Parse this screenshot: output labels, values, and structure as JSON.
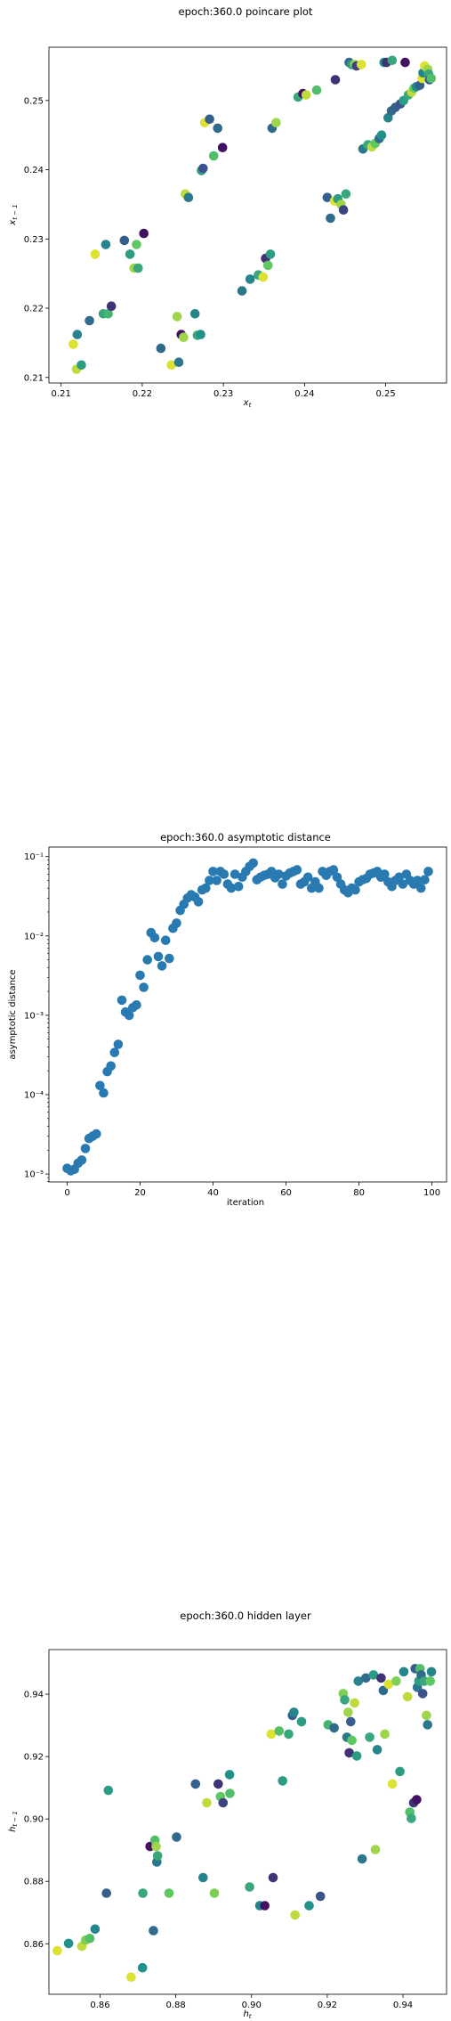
{
  "chart_data": [
    {
      "type": "scatter",
      "title": "epoch:360.0 poincare plot",
      "xlabel": "x_t",
      "ylabel": "x_{t-1}",
      "xlim": [
        0.2085,
        0.2575
      ],
      "ylim": [
        0.2092,
        0.2577
      ],
      "xticks": [
        "0.21",
        "0.22",
        "0.23",
        "0.24",
        "0.25"
      ],
      "yticks": [
        "0.21",
        "0.22",
        "0.23",
        "0.24",
        "0.25"
      ],
      "xtick_values": [
        0.21,
        0.22,
        0.23,
        0.24,
        0.25
      ],
      "ytick_values": [
        0.21,
        0.22,
        0.23,
        0.24,
        0.25
      ],
      "grid": false,
      "colormap": "viridis",
      "points": [
        [
          0.2115,
          0.2148,
          0.95
        ],
        [
          0.212,
          0.2162,
          0.45
        ],
        [
          0.2119,
          0.2112,
          0.9
        ],
        [
          0.2125,
          0.2118,
          0.55
        ],
        [
          0.2135,
          0.2182,
          0.35
        ],
        [
          0.2142,
          0.2278,
          0.95
        ],
        [
          0.2152,
          0.2192,
          0.6
        ],
        [
          0.2155,
          0.2292,
          0.45
        ],
        [
          0.2158,
          0.2192,
          0.65
        ],
        [
          0.2162,
          0.2203,
          0.15
        ],
        [
          0.2178,
          0.2298,
          0.3
        ],
        [
          0.2185,
          0.2278,
          0.55
        ],
        [
          0.219,
          0.2258,
          0.85
        ],
        [
          0.2193,
          0.2292,
          0.75
        ],
        [
          0.2195,
          0.2258,
          0.6
        ],
        [
          0.2202,
          0.2308,
          0.05
        ],
        [
          0.2223,
          0.2142,
          0.35
        ],
        [
          0.2236,
          0.2118,
          0.95
        ],
        [
          0.2243,
          0.2188,
          0.85
        ],
        [
          0.2245,
          0.2122,
          0.4
        ],
        [
          0.2248,
          0.2162,
          0.05
        ],
        [
          0.2251,
          0.2158,
          0.85
        ],
        [
          0.2253,
          0.2365,
          0.9
        ],
        [
          0.2257,
          0.236,
          0.4
        ],
        [
          0.2265,
          0.2192,
          0.45
        ],
        [
          0.2268,
          0.2161,
          0.6
        ],
        [
          0.2273,
          0.2399,
          0.55
        ],
        [
          0.2275,
          0.2402,
          0.25
        ],
        [
          0.2272,
          0.2162,
          0.5
        ],
        [
          0.2277,
          0.2468,
          0.95
        ],
        [
          0.2283,
          0.2473,
          0.3
        ],
        [
          0.2288,
          0.242,
          0.7
        ],
        [
          0.2293,
          0.246,
          0.35
        ],
        [
          0.2299,
          0.2432,
          0.05
        ],
        [
          0.2323,
          0.2225,
          0.4
        ],
        [
          0.2333,
          0.2242,
          0.45
        ],
        [
          0.2343,
          0.2248,
          0.6
        ],
        [
          0.2349,
          0.2245,
          0.95
        ],
        [
          0.2352,
          0.2272,
          0.15
        ],
        [
          0.2355,
          0.2262,
          0.75
        ],
        [
          0.2358,
          0.2278,
          0.55
        ],
        [
          0.236,
          0.246,
          0.35
        ],
        [
          0.2365,
          0.2468,
          0.85
        ],
        [
          0.2392,
          0.2505,
          0.6
        ],
        [
          0.2398,
          0.251,
          0.05
        ],
        [
          0.2402,
          0.2508,
          0.9
        ],
        [
          0.2415,
          0.2515,
          0.7
        ],
        [
          0.2428,
          0.236,
          0.3
        ],
        [
          0.2432,
          0.233,
          0.35
        ],
        [
          0.2438,
          0.253,
          0.15
        ],
        [
          0.2437,
          0.2355,
          0.95
        ],
        [
          0.2441,
          0.2358,
          0.55
        ],
        [
          0.2445,
          0.235,
          0.85
        ],
        [
          0.2448,
          0.2342,
          0.2
        ],
        [
          0.2451,
          0.2365,
          0.6
        ],
        [
          0.2455,
          0.2555,
          0.35
        ],
        [
          0.2458,
          0.2552,
          0.55
        ],
        [
          0.2462,
          0.2552,
          0.85
        ],
        [
          0.2464,
          0.255,
          0.2
        ],
        [
          0.247,
          0.2552,
          0.95
        ],
        [
          0.2472,
          0.243,
          0.4
        ],
        [
          0.2478,
          0.2436,
          0.6
        ],
        [
          0.2483,
          0.2433,
          0.9
        ],
        [
          0.2487,
          0.2438,
          0.75
        ],
        [
          0.2492,
          0.2445,
          0.35
        ],
        [
          0.2495,
          0.245,
          0.5
        ],
        [
          0.2498,
          0.2555,
          0.5
        ],
        [
          0.2501,
          0.2555,
          0.15
        ],
        [
          0.2503,
          0.2475,
          0.45
        ],
        [
          0.2507,
          0.2485,
          0.35
        ],
        [
          0.2508,
          0.2558,
          0.6
        ],
        [
          0.2512,
          0.249,
          0.3
        ],
        [
          0.2518,
          0.2495,
          0.25
        ],
        [
          0.2522,
          0.25,
          0.55
        ],
        [
          0.2524,
          0.2555,
          0.05
        ],
        [
          0.2528,
          0.2508,
          0.6
        ],
        [
          0.2532,
          0.2512,
          0.9
        ],
        [
          0.2535,
          0.2518,
          0.75
        ],
        [
          0.2538,
          0.252,
          0.45
        ],
        [
          0.2542,
          0.2522,
          0.3
        ],
        [
          0.2545,
          0.2532,
          0.95
        ],
        [
          0.2546,
          0.254,
          0.45
        ],
        [
          0.2548,
          0.255,
          0.95
        ],
        [
          0.2552,
          0.2545,
          0.85
        ],
        [
          0.2553,
          0.2538,
          0.6
        ],
        [
          0.2554,
          0.253,
          0.25
        ],
        [
          0.2556,
          0.2532,
          0.7
        ]
      ]
    },
    {
      "type": "scatter",
      "title": "epoch:360.0 asymptotic distance",
      "xlabel": "iteration",
      "ylabel": "asymptotic distance",
      "yscale": "log",
      "xlim": [
        -5,
        104
      ],
      "ylim_log10": [
        -5.1,
        -0.88
      ],
      "xticks": [
        "0",
        "20",
        "40",
        "60",
        "80",
        "100"
      ],
      "xtick_values": [
        0,
        20,
        40,
        60,
        80,
        100
      ],
      "yticks": [
        "10⁻⁵",
        "10⁻⁴",
        "10⁻³",
        "10⁻²",
        "10⁻¹"
      ],
      "ytick_exponents": [
        -5,
        -4,
        -3,
        -2,
        -1
      ],
      "grid": false,
      "color": "#2a7ab2",
      "x": [
        0,
        1,
        2,
        3,
        4,
        5,
        6,
        7,
        8,
        9,
        10,
        11,
        12,
        13,
        14,
        15,
        16,
        17,
        18,
        19,
        20,
        21,
        22,
        23,
        24,
        25,
        26,
        27,
        28,
        29,
        30,
        31,
        32,
        33,
        34,
        35,
        36,
        37,
        38,
        39,
        40,
        41,
        42,
        43,
        44,
        45,
        46,
        47,
        48,
        49,
        50,
        51,
        52,
        53,
        54,
        55,
        56,
        57,
        58,
        59,
        60,
        61,
        62,
        63,
        64,
        65,
        66,
        67,
        68,
        69,
        70,
        71,
        72,
        73,
        74,
        75,
        76,
        77,
        78,
        79,
        80,
        81,
        82,
        83,
        84,
        85,
        86,
        87,
        88,
        89,
        90,
        91,
        92,
        93,
        94,
        95,
        96,
        97,
        98,
        99
      ],
      "y": [
        1.18e-05,
        1.1e-05,
        1.15e-05,
        1.37e-05,
        1.5e-05,
        2.1e-05,
        2.8e-05,
        3e-05,
        3.2e-05,
        0.00013,
        0.000105,
        0.000195,
        0.00023,
        0.00034,
        0.00043,
        0.00155,
        0.0011,
        0.001,
        0.00125,
        0.00135,
        0.0032,
        0.00225,
        0.005,
        0.011,
        0.0095,
        0.0055,
        0.0042,
        0.0088,
        0.0052,
        0.0125,
        0.0145,
        0.021,
        0.025,
        0.03,
        0.033,
        0.031,
        0.027,
        0.038,
        0.04,
        0.05,
        0.065,
        0.05,
        0.065,
        0.06,
        0.045,
        0.04,
        0.06,
        0.042,
        0.055,
        0.065,
        0.075,
        0.083,
        0.051,
        0.055,
        0.058,
        0.06,
        0.065,
        0.054,
        0.06,
        0.045,
        0.057,
        0.062,
        0.065,
        0.068,
        0.045,
        0.048,
        0.055,
        0.04,
        0.048,
        0.04,
        0.065,
        0.058,
        0.065,
        0.068,
        0.055,
        0.045,
        0.038,
        0.035,
        0.04,
        0.038,
        0.048,
        0.051,
        0.053,
        0.06,
        0.062,
        0.065,
        0.055,
        0.06,
        0.048,
        0.042,
        0.05,
        0.055,
        0.045,
        0.06,
        0.05,
        0.045,
        0.05,
        0.04,
        0.051,
        0.065
      ]
    },
    {
      "type": "scatter",
      "title": "epoch:360.0 hidden layer",
      "xlabel": "h_t",
      "ylabel": "h_{t-1}",
      "xlim": [
        0.8465,
        0.9515
      ],
      "ylim": [
        0.8438,
        0.9543
      ],
      "xticks": [
        "0.86",
        "0.88",
        "0.90",
        "0.92",
        "0.94"
      ],
      "xtick_values": [
        0.86,
        0.88,
        0.9,
        0.92,
        0.94
      ],
      "yticks": [
        "0.86",
        "0.88",
        "0.90",
        "0.92",
        "0.94"
      ],
      "ytick_values": [
        0.86,
        0.88,
        0.9,
        0.92,
        0.94
      ],
      "grid": false,
      "colormap": "viridis",
      "points": [
        [
          0.8487,
          0.8578,
          0.95
        ],
        [
          0.8517,
          0.8601,
          0.5
        ],
        [
          0.8552,
          0.8592,
          0.9
        ],
        [
          0.8562,
          0.8612,
          0.8
        ],
        [
          0.8573,
          0.8617,
          0.7
        ],
        [
          0.8587,
          0.8647,
          0.45
        ],
        [
          0.8617,
          0.8762,
          0.3
        ],
        [
          0.8622,
          0.9092,
          0.55
        ],
        [
          0.8682,
          0.8493,
          0.95
        ],
        [
          0.8712,
          0.8523,
          0.5
        ],
        [
          0.8713,
          0.8762,
          0.6
        ],
        [
          0.8732,
          0.8912,
          0.05
        ],
        [
          0.8741,
          0.8642,
          0.35
        ],
        [
          0.8745,
          0.8932,
          0.7
        ],
        [
          0.8748,
          0.8912,
          0.85
        ],
        [
          0.875,
          0.8862,
          0.4
        ],
        [
          0.8752,
          0.8882,
          0.6
        ],
        [
          0.8782,
          0.8762,
          0.75
        ],
        [
          0.8802,
          0.8942,
          0.35
        ],
        [
          0.8852,
          0.9112,
          0.3
        ],
        [
          0.8872,
          0.8812,
          0.45
        ],
        [
          0.8882,
          0.9052,
          0.9
        ],
        [
          0.8902,
          0.8762,
          0.8
        ],
        [
          0.8912,
          0.9112,
          0.15
        ],
        [
          0.8918,
          0.9072,
          0.75
        ],
        [
          0.8925,
          0.9052,
          0.2
        ],
        [
          0.8942,
          0.9142,
          0.5
        ],
        [
          0.8943,
          0.9082,
          0.7
        ],
        [
          0.8995,
          0.8782,
          0.6
        ],
        [
          0.9022,
          0.8722,
          0.45
        ],
        [
          0.9035,
          0.8722,
          0.05
        ],
        [
          0.9052,
          0.9272,
          0.95
        ],
        [
          0.9057,
          0.8812,
          0.15
        ],
        [
          0.9073,
          0.9282,
          0.7
        ],
        [
          0.9082,
          0.9122,
          0.55
        ],
        [
          0.9098,
          0.9272,
          0.6
        ],
        [
          0.9108,
          0.9332,
          0.3
        ],
        [
          0.9112,
          0.9342,
          0.45
        ],
        [
          0.9115,
          0.8692,
          0.9
        ],
        [
          0.9132,
          0.9312,
          0.55
        ],
        [
          0.9152,
          0.8722,
          0.5
        ],
        [
          0.9182,
          0.8752,
          0.25
        ],
        [
          0.9202,
          0.9302,
          0.65
        ],
        [
          0.9218,
          0.9292,
          0.35
        ],
        [
          0.9242,
          0.9402,
          0.8
        ],
        [
          0.9246,
          0.9382,
          0.6
        ],
        [
          0.9252,
          0.9262,
          0.4
        ],
        [
          0.9255,
          0.9342,
          0.85
        ],
        [
          0.9258,
          0.9212,
          0.15
        ],
        [
          0.9262,
          0.9312,
          0.3
        ],
        [
          0.9265,
          0.9252,
          0.75
        ],
        [
          0.9272,
          0.9372,
          0.9
        ],
        [
          0.9278,
          0.9202,
          0.55
        ],
        [
          0.9282,
          0.9442,
          0.45
        ],
        [
          0.9292,
          0.8872,
          0.4
        ],
        [
          0.9302,
          0.9452,
          0.35
        ],
        [
          0.9312,
          0.9262,
          0.6
        ],
        [
          0.9322,
          0.9462,
          0.55
        ],
        [
          0.9327,
          0.8902,
          0.85
        ],
        [
          0.9332,
          0.9222,
          0.45
        ],
        [
          0.9342,
          0.9452,
          0.15
        ],
        [
          0.9348,
          0.9412,
          0.35
        ],
        [
          0.9352,
          0.9272,
          0.85
        ],
        [
          0.9362,
          0.9432,
          0.95
        ],
        [
          0.9372,
          0.9112,
          0.95
        ],
        [
          0.9382,
          0.9442,
          0.8
        ],
        [
          0.9392,
          0.9152,
          0.55
        ],
        [
          0.9402,
          0.9472,
          0.45
        ],
        [
          0.9412,
          0.9392,
          0.9
        ],
        [
          0.9418,
          0.9022,
          0.7
        ],
        [
          0.9422,
          0.9002,
          0.6
        ],
        [
          0.9428,
          0.9052,
          0.15
        ],
        [
          0.9432,
          0.9482,
          0.3
        ],
        [
          0.9436,
          0.9062,
          0.05
        ],
        [
          0.9438,
          0.9422,
          0.4
        ],
        [
          0.9442,
          0.9442,
          0.55
        ],
        [
          0.9445,
          0.9482,
          0.7
        ],
        [
          0.9448,
          0.9462,
          0.35
        ],
        [
          0.9452,
          0.9402,
          0.25
        ],
        [
          0.9456,
          0.9442,
          0.6
        ],
        [
          0.9462,
          0.9332,
          0.85
        ],
        [
          0.9465,
          0.9302,
          0.4
        ],
        [
          0.9472,
          0.9442,
          0.75
        ],
        [
          0.9475,
          0.9472,
          0.45
        ]
      ]
    }
  ]
}
